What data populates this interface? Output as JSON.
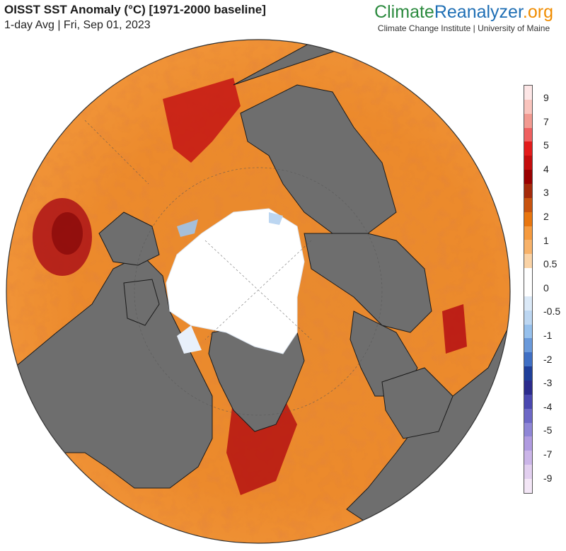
{
  "header": {
    "title": "OISST SST Anomaly (°C) [1971-2000 baseline]",
    "subtitle": "1-day Avg | Fri, Sep 01, 2023"
  },
  "brand": {
    "logo_part1": "Climate",
    "logo_part2": "Reanalyzer",
    "logo_part3": ".org",
    "tagline": "Climate Change Institute | University of Maine"
  },
  "map": {
    "projection": "orthographic, north polar view",
    "colors": {
      "land": "#707070",
      "sea_ice": "#ffffff",
      "coastline": "#1a1a1a"
    }
  },
  "colorbar": {
    "ticks": [
      "9",
      "7",
      "5",
      "4",
      "3",
      "2",
      "1",
      "0.5",
      "0",
      "-0.5",
      "-1",
      "-2",
      "-3",
      "-4",
      "-5",
      "-7",
      "-9"
    ],
    "swatches": [
      "#fde6e6",
      "#f9c4bd",
      "#f29a91",
      "#ef6060",
      "#e31b1b",
      "#c40d0d",
      "#9a0000",
      "#a52a0a",
      "#c8530f",
      "#e8760f",
      "#f59a3e",
      "#f7b26a",
      "#fad3a6",
      "#ffffff",
      "#ffffff",
      "#dbe9f7",
      "#bcd6f1",
      "#96c0ec",
      "#6a99da",
      "#3f6fc4",
      "#1f3f9a",
      "#2b2b8c",
      "#4a48b0",
      "#6d68c6",
      "#8f86d6",
      "#b09be0",
      "#cbb5e8",
      "#e2cfef",
      "#f3e6f6"
    ]
  }
}
